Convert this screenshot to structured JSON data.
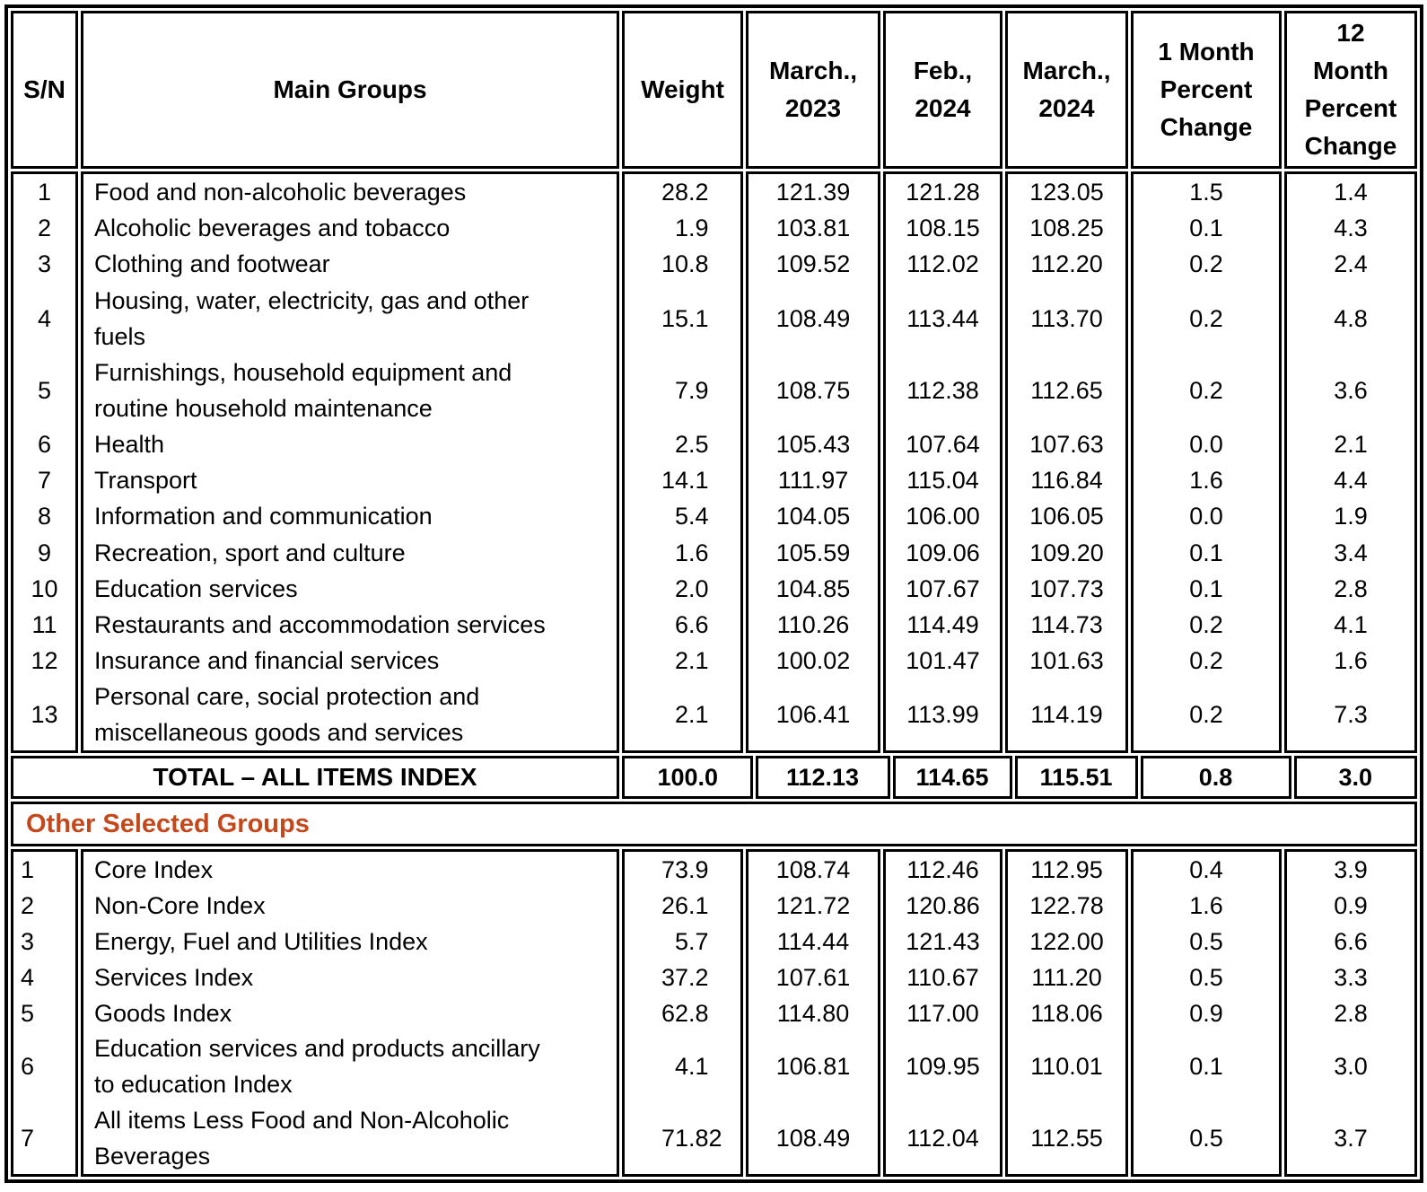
{
  "table": {
    "columns": [
      {
        "key": "sn",
        "label": "S/N"
      },
      {
        "key": "group",
        "label": "Main Groups"
      },
      {
        "key": "weight",
        "label": "Weight"
      },
      {
        "key": "mar23",
        "label": "March.,\n2023"
      },
      {
        "key": "feb24",
        "label": "Feb.,\n2024"
      },
      {
        "key": "mar24",
        "label": "March.,\n2024"
      },
      {
        "key": "m1",
        "label": "1 Month\nPercent\nChange"
      },
      {
        "key": "m12",
        "label": "12\nMonth\nPercent\nChange"
      }
    ],
    "main_rows": [
      {
        "sn": "1",
        "group": "Food and non-alcoholic beverages",
        "weight": "28.2",
        "mar23": "121.39",
        "feb24": "121.28",
        "mar24": "123.05",
        "m1": "1.5",
        "m12": "1.4"
      },
      {
        "sn": "2",
        "group": "Alcoholic beverages and tobacco",
        "weight": "1.9",
        "mar23": "103.81",
        "feb24": "108.15",
        "mar24": "108.25",
        "m1": "0.1",
        "m12": "4.3"
      },
      {
        "sn": "3",
        "group": "Clothing and footwear",
        "weight": "10.8",
        "mar23": "109.52",
        "feb24": "112.02",
        "mar24": "112.20",
        "m1": "0.2",
        "m12": "2.4"
      },
      {
        "sn": "4",
        "group": "Housing, water, electricity, gas and other\nfuels",
        "weight": "15.1",
        "mar23": "108.49",
        "feb24": "113.44",
        "mar24": "113.70",
        "m1": "0.2",
        "m12": "4.8"
      },
      {
        "sn": "5",
        "group": "Furnishings, household equipment and\nroutine household maintenance",
        "weight": "7.9",
        "mar23": "108.75",
        "feb24": "112.38",
        "mar24": "112.65",
        "m1": "0.2",
        "m12": "3.6"
      },
      {
        "sn": "6",
        "group": "Health",
        "weight": "2.5",
        "mar23": "105.43",
        "feb24": "107.64",
        "mar24": "107.63",
        "m1": "0.0",
        "m12": "2.1"
      },
      {
        "sn": "7",
        "group": "Transport",
        "weight": "14.1",
        "mar23": "111.97",
        "feb24": "115.04",
        "mar24": "116.84",
        "m1": "1.6",
        "m12": "4.4"
      },
      {
        "sn": "8",
        "group": "Information and communication",
        "weight": "5.4",
        "mar23": "104.05",
        "feb24": "106.00",
        "mar24": "106.05",
        "m1": "0.0",
        "m12": "1.9"
      },
      {
        "sn": "9",
        "group": "Recreation, sport and culture",
        "weight": "1.6",
        "mar23": "105.59",
        "feb24": "109.06",
        "mar24": "109.20",
        "m1": "0.1",
        "m12": "3.4"
      },
      {
        "sn": "10",
        "group": "Education services",
        "weight": "2.0",
        "mar23": "104.85",
        "feb24": "107.67",
        "mar24": "107.73",
        "m1": "0.1",
        "m12": "2.8"
      },
      {
        "sn": "11",
        "group": "Restaurants and accommodation services",
        "weight": "6.6",
        "mar23": "110.26",
        "feb24": "114.49",
        "mar24": "114.73",
        "m1": "0.2",
        "m12": "4.1"
      },
      {
        "sn": "12",
        "group": "Insurance and financial services",
        "weight": "2.1",
        "mar23": "100.02",
        "feb24": "101.47",
        "mar24": "101.63",
        "m1": "0.2",
        "m12": "1.6"
      },
      {
        "sn": "13",
        "group": "Personal care, social protection and\nmiscellaneous goods and services",
        "weight": "2.1",
        "mar23": "106.41",
        "feb24": "113.99",
        "mar24": "114.19",
        "m1": "0.2",
        "m12": "7.3"
      }
    ],
    "total_row": {
      "label": "TOTAL – ALL ITEMS INDEX",
      "weight": "100.0",
      "mar23": "112.13",
      "feb24": "114.65",
      "mar24": "115.51",
      "m1": "0.8",
      "m12": "3.0"
    },
    "section_label": "Other Selected Groups",
    "other_rows": [
      {
        "sn": "1",
        "group": "Core Index",
        "weight": "73.9",
        "mar23": "108.74",
        "feb24": "112.46",
        "mar24": "112.95",
        "m1": "0.4",
        "m12": "3.9"
      },
      {
        "sn": "2",
        "group": "Non-Core Index",
        "weight": "26.1",
        "mar23": "121.72",
        "feb24": "120.86",
        "mar24": "122.78",
        "m1": "1.6",
        "m12": "0.9"
      },
      {
        "sn": "3",
        "group": "Energy, Fuel and Utilities Index",
        "weight": "5.7",
        "mar23": "114.44",
        "feb24": "121.43",
        "mar24": "122.00",
        "m1": "0.5",
        "m12": "6.6"
      },
      {
        "sn": "4",
        "group": "Services Index",
        "weight": "37.2",
        "mar23": "107.61",
        "feb24": "110.67",
        "mar24": "111.20",
        "m1": "0.5",
        "m12": "3.3"
      },
      {
        "sn": "5",
        "group": "Goods Index",
        "weight": "62.8",
        "mar23": "114.80",
        "feb24": "117.00",
        "mar24": "118.06",
        "m1": "0.9",
        "m12": "2.8"
      },
      {
        "sn": "6",
        "group": "Education services and products ancillary\nto education Index",
        "weight": "4.1",
        "mar23": "106.81",
        "feb24": "109.95",
        "mar24": "110.01",
        "m1": "0.1",
        "m12": "3.0"
      },
      {
        "sn": "7",
        "group": "All items Less Food and Non-Alcoholic\nBeverages",
        "weight": "71.82",
        "mar23": "108.49",
        "feb24": "112.04",
        "mar24": "112.55",
        "m1": "0.5",
        "m12": "3.7"
      }
    ]
  },
  "colors": {
    "accent": "#C5481B",
    "border": "#000000",
    "text": "#000000",
    "background": "#FFFFFF"
  }
}
